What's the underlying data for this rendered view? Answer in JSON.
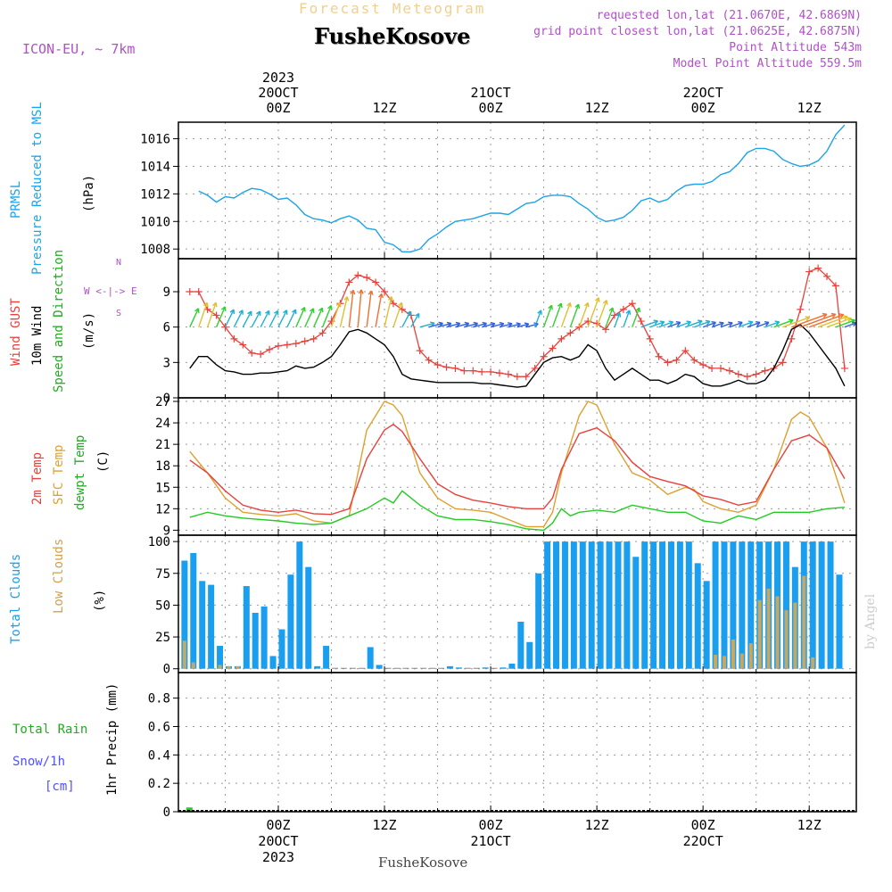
{
  "header": {
    "product": "Forecast Meteogram",
    "location": "FusheKosove",
    "model": "ICON-EU, ~ 7km",
    "requested_point": "requested lon,lat (21.0670E, 42.6869N)",
    "closest_point": "grid point closest lon,lat (21.0625E, 42.6875N)",
    "point_altitude": "Point Altitude 543m",
    "model_altitude": "Model Point Altitude 559.5m",
    "credit": "by Angel",
    "footer": "FusheKosove"
  },
  "time_axis": {
    "top_labels": [
      {
        "h": 0,
        "lines": [
          "2023",
          "20OCT",
          "00Z"
        ]
      },
      {
        "h": 12,
        "lines": [
          "12Z"
        ]
      },
      {
        "h": 24,
        "lines": [
          "21OCT",
          "00Z"
        ]
      },
      {
        "h": 36,
        "lines": [
          "12Z"
        ]
      },
      {
        "h": 48,
        "lines": [
          "22OCT",
          "00Z"
        ]
      },
      {
        "h": 60,
        "lines": [
          "12Z"
        ]
      }
    ],
    "bottom_labels": [
      {
        "h": 0,
        "lines": [
          "00Z",
          "20OCT",
          "2023"
        ]
      },
      {
        "h": 12,
        "lines": [
          "12Z"
        ]
      },
      {
        "h": 24,
        "lines": [
          "00Z",
          "21OCT"
        ]
      },
      {
        "h": 36,
        "lines": [
          "12Z"
        ]
      },
      {
        "h": 48,
        "lines": [
          "00Z",
          "22OCT"
        ]
      },
      {
        "h": 60,
        "lines": [
          "12Z"
        ]
      }
    ]
  },
  "panel_labels": {
    "pressure": [
      "PRMSL",
      "Pressure Reduced to MSL",
      "(hPa)"
    ],
    "wind": [
      "Wind GUST",
      "10m Wind",
      "Speed and Direction",
      "(m/s)"
    ],
    "compass": [
      "N",
      "S",
      "W <-|-> E"
    ],
    "temp": [
      "2m Temp",
      "SFC Temp",
      "dewpt Temp",
      "(C)"
    ],
    "clouds": [
      "Total Clouds",
      "Low Clouds",
      "(%)"
    ],
    "precip": [
      "Total  Rain",
      "Snow/1h",
      "[cm]",
      "1hr Precip (mm)"
    ]
  },
  "colors": {
    "pressure": "#1ca3e8",
    "gust": "#e8413c",
    "wind": "#000000",
    "t2m": "#e8413c",
    "tsfc": "#e0a030",
    "dewpt": "#22cc22",
    "total_clouds": "#1a9ff0",
    "low_clouds": "#c8a860",
    "rain": "#22cc22",
    "snow": "#5050ff",
    "title": "#f0d090",
    "info": "#b050c8"
  },
  "chart_data": [
    {
      "type": "line",
      "panel": "pressure",
      "ylabel": "Pressure Reduced to MSL (hPa)",
      "ylim": [
        1007.3,
        1017.2
      ],
      "yticks": [
        1008,
        1010,
        1012,
        1014,
        1016
      ],
      "grid": true,
      "series": [
        {
          "name": "PRMSL",
          "x": [
            -9,
            -8,
            -7,
            -6,
            -5,
            -4,
            -3,
            -2,
            -1,
            0,
            1,
            2,
            3,
            4,
            5,
            6,
            7,
            8,
            9,
            10,
            11,
            12,
            13,
            14,
            15,
            16,
            17,
            18,
            19,
            20,
            21,
            22,
            23,
            24,
            25,
            26,
            27,
            28,
            29,
            30,
            31,
            32,
            33,
            34,
            35,
            36,
            37,
            38,
            39,
            40,
            41,
            42,
            43,
            44,
            45,
            46,
            47,
            48,
            49,
            50,
            51,
            52,
            53,
            54,
            55,
            56,
            57,
            58,
            59,
            60,
            61,
            62,
            63,
            64
          ],
          "y": [
            1012.2,
            1011.9,
            1011.4,
            1011.8,
            1011.7,
            1012.1,
            1012.4,
            1012.3,
            1012.0,
            1011.6,
            1011.7,
            1011.2,
            1010.5,
            1010.2,
            1010.1,
            1009.9,
            1010.2,
            1010.4,
            1010.1,
            1009.5,
            1009.4,
            1008.5,
            1008.3,
            1007.8,
            1007.8,
            1008.0,
            1008.7,
            1009.1,
            1009.6,
            1010.0,
            1010.1,
            1010.2,
            1010.4,
            1010.6,
            1010.6,
            1010.5,
            1010.9,
            1011.3,
            1011.4,
            1011.8,
            1011.9,
            1011.9,
            1011.8,
            1011.3,
            1010.9,
            1010.3,
            1010.0,
            1010.1,
            1010.3,
            1010.8,
            1011.5,
            1011.7,
            1011.4,
            1011.6,
            1012.2,
            1012.6,
            1012.7,
            1012.7,
            1012.9,
            1013.4,
            1013.6,
            1014.2,
            1015.0,
            1015.3,
            1015.3,
            1015.1,
            1014.5,
            1014.2,
            1014.0,
            1014.1,
            1014.4,
            1015.1,
            1016.3,
            1017.0
          ]
        }
      ]
    },
    {
      "type": "line",
      "panel": "wind",
      "ylabel": "(m/s)",
      "ylim": [
        0,
        11.8
      ],
      "yticks": [
        0,
        3,
        6,
        9
      ],
      "grid": true,
      "series": [
        {
          "name": "Wind GUST",
          "x": [
            -10,
            -9,
            -8,
            -7,
            -6,
            -5,
            -4,
            -3,
            -2,
            -1,
            0,
            1,
            2,
            3,
            4,
            5,
            6,
            7,
            8,
            9,
            10,
            11,
            12,
            13,
            14,
            15,
            16,
            17,
            18,
            19,
            20,
            21,
            22,
            23,
            24,
            25,
            26,
            27,
            28,
            29,
            30,
            31,
            32,
            33,
            34,
            35,
            36,
            37,
            38,
            39,
            40,
            41,
            42,
            43,
            44,
            45,
            46,
            47,
            48,
            49,
            50,
            51,
            52,
            53,
            54,
            55,
            56,
            57,
            58,
            59,
            60,
            61,
            62,
            63,
            64
          ],
          "y": [
            9.0,
            9.0,
            7.5,
            7.0,
            6.0,
            5.0,
            4.5,
            3.8,
            3.7,
            4.1,
            4.4,
            4.5,
            4.6,
            4.8,
            5.0,
            5.5,
            6.5,
            8.0,
            9.8,
            10.4,
            10.2,
            9.8,
            9.0,
            8.0,
            7.5,
            7.0,
            4.0,
            3.2,
            2.8,
            2.6,
            2.5,
            2.3,
            2.3,
            2.2,
            2.2,
            2.1,
            2.0,
            1.8,
            1.8,
            2.5,
            3.5,
            4.2,
            5.0,
            5.5,
            6.0,
            6.5,
            6.3,
            5.8,
            7.0,
            7.5,
            8.0,
            6.5,
            5.0,
            3.5,
            3.0,
            3.2,
            4.0,
            3.2,
            2.8,
            2.5,
            2.5,
            2.3,
            2.0,
            1.8,
            2.0,
            2.3,
            2.5,
            3.0,
            5.0,
            7.5,
            10.7,
            11.0,
            10.3,
            9.5,
            2.5
          ]
        },
        {
          "name": "10m Wind",
          "x": [
            -10,
            -9,
            -8,
            -7,
            -6,
            -5,
            -4,
            -3,
            -2,
            -1,
            0,
            1,
            2,
            3,
            4,
            5,
            6,
            7,
            8,
            9,
            10,
            11,
            12,
            13,
            14,
            15,
            16,
            17,
            18,
            19,
            20,
            21,
            22,
            23,
            24,
            25,
            26,
            27,
            28,
            29,
            30,
            31,
            32,
            33,
            34,
            35,
            36,
            37,
            38,
            39,
            40,
            41,
            42,
            43,
            44,
            45,
            46,
            47,
            48,
            49,
            50,
            51,
            52,
            53,
            54,
            55,
            56,
            57,
            58,
            59,
            60,
            61,
            62,
            63,
            64
          ],
          "y": [
            2.5,
            3.5,
            3.5,
            2.8,
            2.3,
            2.2,
            2.0,
            2.0,
            2.1,
            2.1,
            2.2,
            2.3,
            2.7,
            2.5,
            2.6,
            3.0,
            3.5,
            4.5,
            5.6,
            5.8,
            5.5,
            5.0,
            4.5,
            3.5,
            2.0,
            1.6,
            1.5,
            1.4,
            1.3,
            1.3,
            1.3,
            1.3,
            1.3,
            1.2,
            1.2,
            1.1,
            1.0,
            0.9,
            1.0,
            2.0,
            3.0,
            3.4,
            3.5,
            3.2,
            3.5,
            4.5,
            4.0,
            2.5,
            1.5,
            2.0,
            2.5,
            2.0,
            1.5,
            1.5,
            1.2,
            1.5,
            2.0,
            1.8,
            1.2,
            1.0,
            1.0,
            1.2,
            1.5,
            1.2,
            1.2,
            1.5,
            2.5,
            4.0,
            5.8,
            6.2,
            5.5,
            4.5,
            3.5,
            2.5,
            1.0
          ]
        }
      ]
    },
    {
      "type": "line",
      "panel": "temp",
      "ylabel": "(C)",
      "ylim": [
        8.3,
        27.5
      ],
      "yticks": [
        9,
        12,
        15,
        18,
        21,
        24,
        27
      ],
      "grid": true,
      "series": [
        {
          "name": "2m Temp",
          "x": [
            -10,
            -8,
            -6,
            -4,
            -2,
            0,
            2,
            4,
            6,
            8,
            10,
            12,
            13,
            14,
            16,
            18,
            20,
            22,
            24,
            26,
            28,
            30,
            31,
            32,
            34,
            36,
            38,
            40,
            42,
            44,
            46,
            48,
            50,
            52,
            54,
            56,
            58,
            60,
            62,
            64
          ],
          "y": [
            18.8,
            17.0,
            14.5,
            12.5,
            11.8,
            11.5,
            11.8,
            11.3,
            11.2,
            12.0,
            19.0,
            23.0,
            23.8,
            22.8,
            19.0,
            15.5,
            14.0,
            13.2,
            12.8,
            12.3,
            12.0,
            12.0,
            13.5,
            17.5,
            22.5,
            23.3,
            21.5,
            18.5,
            16.5,
            15.8,
            15.2,
            13.8,
            13.3,
            12.5,
            13.0,
            17.5,
            21.5,
            22.3,
            20.5,
            16.2
          ]
        },
        {
          "name": "SFC Temp",
          "x": [
            -10,
            -8,
            -6,
            -4,
            -2,
            0,
            2,
            4,
            6,
            8,
            10,
            12,
            13,
            14,
            16,
            18,
            20,
            22,
            24,
            26,
            28,
            30,
            31,
            32,
            34,
            35,
            36,
            38,
            40,
            42,
            44,
            46,
            47,
            48,
            50,
            52,
            54,
            56,
            58,
            59,
            60,
            62,
            64
          ],
          "y": [
            20.0,
            17.0,
            13.5,
            11.5,
            11.2,
            11.0,
            11.3,
            10.3,
            10.0,
            11.0,
            23.0,
            27.0,
            26.5,
            25.0,
            17.0,
            13.5,
            12.0,
            11.8,
            11.5,
            10.5,
            9.5,
            9.5,
            11.5,
            17.0,
            25.0,
            27.0,
            26.5,
            21.0,
            17.0,
            16.0,
            14.0,
            15.0,
            14.7,
            13.0,
            12.0,
            11.5,
            12.5,
            17.5,
            24.5,
            25.5,
            24.8,
            20.5,
            12.8
          ]
        },
        {
          "name": "dewpt Temp",
          "x": [
            -10,
            -8,
            -6,
            -4,
            -2,
            0,
            2,
            4,
            6,
            8,
            10,
            12,
            13,
            14,
            16,
            18,
            20,
            22,
            24,
            26,
            28,
            30,
            31,
            32,
            33,
            34,
            36,
            38,
            40,
            42,
            44,
            46,
            48,
            50,
            52,
            54,
            56,
            58,
            60,
            62,
            64
          ],
          "y": [
            10.8,
            11.5,
            11.0,
            10.7,
            10.5,
            10.3,
            10.0,
            9.8,
            10.0,
            11.0,
            12.0,
            13.5,
            12.8,
            14.5,
            12.5,
            11.0,
            10.5,
            10.5,
            10.2,
            9.8,
            9.2,
            9.0,
            10.0,
            12.0,
            11.0,
            11.5,
            11.8,
            11.5,
            12.5,
            12.0,
            11.5,
            11.5,
            10.3,
            10.0,
            11.0,
            10.5,
            11.5,
            11.5,
            11.5,
            12.0,
            12.2
          ]
        }
      ]
    },
    {
      "type": "bar",
      "panel": "clouds",
      "ylabel": "(%)",
      "ylim": [
        -3,
        105
      ],
      "yticks": [
        0,
        25,
        50,
        75,
        100
      ],
      "grid": true,
      "x": [
        -11,
        -10,
        -9,
        -8,
        -7,
        -6,
        -5,
        -4,
        -3,
        -2,
        -1,
        0,
        1,
        2,
        3,
        4,
        5,
        6,
        7,
        8,
        9,
        10,
        11,
        12,
        13,
        14,
        15,
        16,
        17,
        18,
        19,
        20,
        21,
        22,
        23,
        24,
        25,
        26,
        27,
        28,
        29,
        30,
        31,
        32,
        33,
        34,
        35,
        36,
        37,
        38,
        39,
        40,
        41,
        42,
        43,
        44,
        45,
        46,
        47,
        48,
        49,
        50,
        51,
        52,
        53,
        54,
        55,
        56,
        57,
        58,
        59,
        60,
        61,
        62,
        63
      ],
      "series": [
        {
          "name": "Total Clouds",
          "values": [
            85,
            91,
            69,
            66,
            18,
            2,
            2,
            65,
            44,
            49,
            10,
            31,
            74,
            100,
            80,
            2,
            18,
            0,
            0,
            0,
            0,
            17,
            3,
            0,
            0,
            0,
            0,
            0,
            0,
            0,
            2,
            1,
            0,
            0,
            1,
            0,
            1,
            4,
            37,
            21,
            75,
            100,
            100,
            100,
            100,
            100,
            100,
            100,
            100,
            100,
            100,
            88,
            100,
            100,
            100,
            100,
            100,
            100,
            83,
            69,
            100,
            100,
            100,
            100,
            100,
            100,
            100,
            100,
            100,
            80,
            100,
            100,
            100,
            100,
            74
          ]
        },
        {
          "name": "Low Clouds",
          "values": [
            22,
            5,
            0,
            0,
            3,
            2,
            2,
            0,
            0,
            0,
            0,
            0,
            0,
            0,
            0,
            0,
            0,
            0,
            0,
            0,
            0,
            0,
            0,
            0,
            0,
            0,
            0,
            0,
            0,
            0,
            0,
            0,
            0,
            0,
            0,
            0,
            0,
            0,
            0,
            0,
            0,
            0,
            0,
            0,
            0,
            0,
            0,
            0,
            0,
            0,
            0,
            0,
            0,
            0,
            0,
            0,
            0,
            0,
            0,
            0,
            11,
            10,
            23,
            12,
            20,
            54,
            63,
            57,
            46,
            52,
            73,
            9,
            0,
            0,
            0
          ]
        }
      ]
    },
    {
      "type": "bar",
      "panel": "precip",
      "ylabel": "1hr Precip (mm)",
      "ylim": [
        0,
        0.98
      ],
      "yticks": [
        0,
        0.2,
        0.4,
        0.6,
        0.8
      ],
      "grid": true,
      "x": [
        -10
      ],
      "series": [
        {
          "name": "Total  Rain",
          "values": [
            0.03
          ]
        }
      ]
    }
  ]
}
